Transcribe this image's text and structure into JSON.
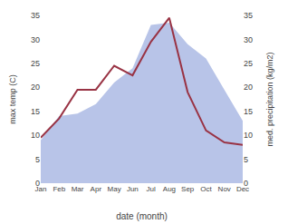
{
  "chart_data": {
    "type": "area",
    "categories": [
      "Jan",
      "Feb",
      "Mar",
      "Apr",
      "May",
      "Jun",
      "Jul",
      "Aug",
      "Sep",
      "Oct",
      "Nov",
      "Dec"
    ],
    "series": [
      {
        "type": "area",
        "color": "#b8c4e8",
        "values": [
          9.0,
          14.0,
          14.5,
          16.5,
          21.0,
          24.0,
          33.0,
          33.5,
          29.0,
          26.0,
          19.5,
          13.0
        ]
      },
      {
        "type": "line",
        "color": "#993344",
        "axis": "y2",
        "values": [
          9.5,
          13.5,
          19.5,
          19.5,
          24.5,
          22.5,
          29.5,
          34.5,
          19.0,
          11.0,
          8.5,
          8.0
        ]
      }
    ],
    "xlabel": "date (month)",
    "ylabel": "max temp (C)",
    "y2label": "med. precipitation (kg/m2)",
    "ylim": [
      0,
      35
    ],
    "yticks": [
      0,
      5,
      10,
      15,
      20,
      25,
      30,
      35
    ],
    "y2lim": [
      0,
      35
    ],
    "y2ticks": [
      0,
      5,
      10,
      15,
      20,
      25,
      30,
      35
    ],
    "grid": false
  }
}
